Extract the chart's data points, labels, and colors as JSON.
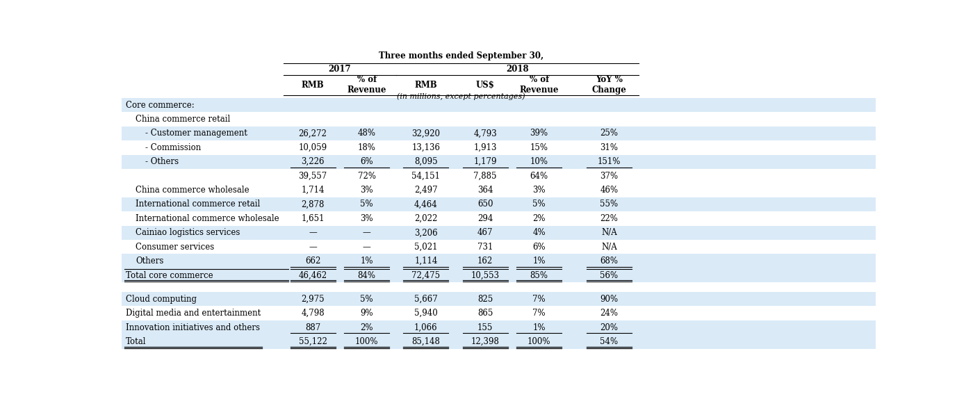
{
  "title": "Three months ended September 30,",
  "sub_note": "(in millions, except percentages)",
  "col_headers": [
    "RMB",
    "% of\nRevenue",
    "RMB",
    "US$",
    "% of\nRevenue",
    "YoY %\nChange"
  ],
  "year_2017": "2017",
  "year_2018": "2018",
  "rows": [
    {
      "label": "Core commerce:",
      "values": [
        "",
        "",
        "",
        "",
        "",
        ""
      ],
      "style": "section_header",
      "indent": 0
    },
    {
      "label": "China commerce retail",
      "values": [
        "",
        "",
        "",
        "",
        "",
        ""
      ],
      "style": "sub_header",
      "indent": 1
    },
    {
      "label": "- Customer management",
      "values": [
        "26,272",
        "48%",
        "32,920",
        "4,793",
        "39%",
        "25%"
      ],
      "style": "data_blue",
      "indent": 2
    },
    {
      "label": "- Commission",
      "values": [
        "10,059",
        "18%",
        "13,136",
        "1,913",
        "15%",
        "31%"
      ],
      "style": "data_white",
      "indent": 2
    },
    {
      "label": "- Others",
      "values": [
        "3,226",
        "6%",
        "8,095",
        "1,179",
        "10%",
        "151%"
      ],
      "style": "data_blue_ul",
      "indent": 2
    },
    {
      "label": "",
      "values": [
        "39,557",
        "72%",
        "54,151",
        "7,885",
        "64%",
        "37%"
      ],
      "style": "data_white",
      "indent": 2
    },
    {
      "label": "China commerce wholesale",
      "values": [
        "1,714",
        "3%",
        "2,497",
        "364",
        "3%",
        "46%"
      ],
      "style": "data_white",
      "indent": 1
    },
    {
      "label": "International commerce retail",
      "values": [
        "2,878",
        "5%",
        "4,464",
        "650",
        "5%",
        "55%"
      ],
      "style": "data_blue",
      "indent": 1
    },
    {
      "label": "International commerce wholesale",
      "values": [
        "1,651",
        "3%",
        "2,022",
        "294",
        "2%",
        "22%"
      ],
      "style": "data_white",
      "indent": 1
    },
    {
      "label": "Cainiao logistics services",
      "values": [
        "—",
        "—",
        "3,206",
        "467",
        "4%",
        "N/A"
      ],
      "style": "data_blue",
      "indent": 1
    },
    {
      "label": "Consumer services",
      "values": [
        "—",
        "—",
        "5,021",
        "731",
        "6%",
        "N/A"
      ],
      "style": "data_white",
      "indent": 1
    },
    {
      "label": "Others",
      "values": [
        "662",
        "1%",
        "1,114",
        "162",
        "1%",
        "68%"
      ],
      "style": "data_blue_ul",
      "indent": 1
    },
    {
      "label": "Total core commerce",
      "values": [
        "46,462",
        "84%",
        "72,475",
        "10,553",
        "85%",
        "56%"
      ],
      "style": "total",
      "indent": 0
    },
    {
      "label": "",
      "values": [
        "",
        "",
        "",
        "",
        "",
        ""
      ],
      "style": "spacer",
      "indent": 0
    },
    {
      "label": "Cloud computing",
      "values": [
        "2,975",
        "5%",
        "5,667",
        "825",
        "7%",
        "90%"
      ],
      "style": "data_blue",
      "indent": 0
    },
    {
      "label": "Digital media and entertainment",
      "values": [
        "4,798",
        "9%",
        "5,940",
        "865",
        "7%",
        "24%"
      ],
      "style": "data_white",
      "indent": 0
    },
    {
      "label": "Innovation initiatives and others",
      "values": [
        "887",
        "2%",
        "1,066",
        "155",
        "1%",
        "20%"
      ],
      "style": "data_blue_ul",
      "indent": 0
    },
    {
      "label": "Total",
      "values": [
        "55,122",
        "100%",
        "85,148",
        "12,398",
        "100%",
        "54%"
      ],
      "style": "grand_total",
      "indent": 0
    }
  ],
  "light_blue": "#ddeeff",
  "white": "#ffffff",
  "font_size": 8.5,
  "header_font_size": 8.5
}
